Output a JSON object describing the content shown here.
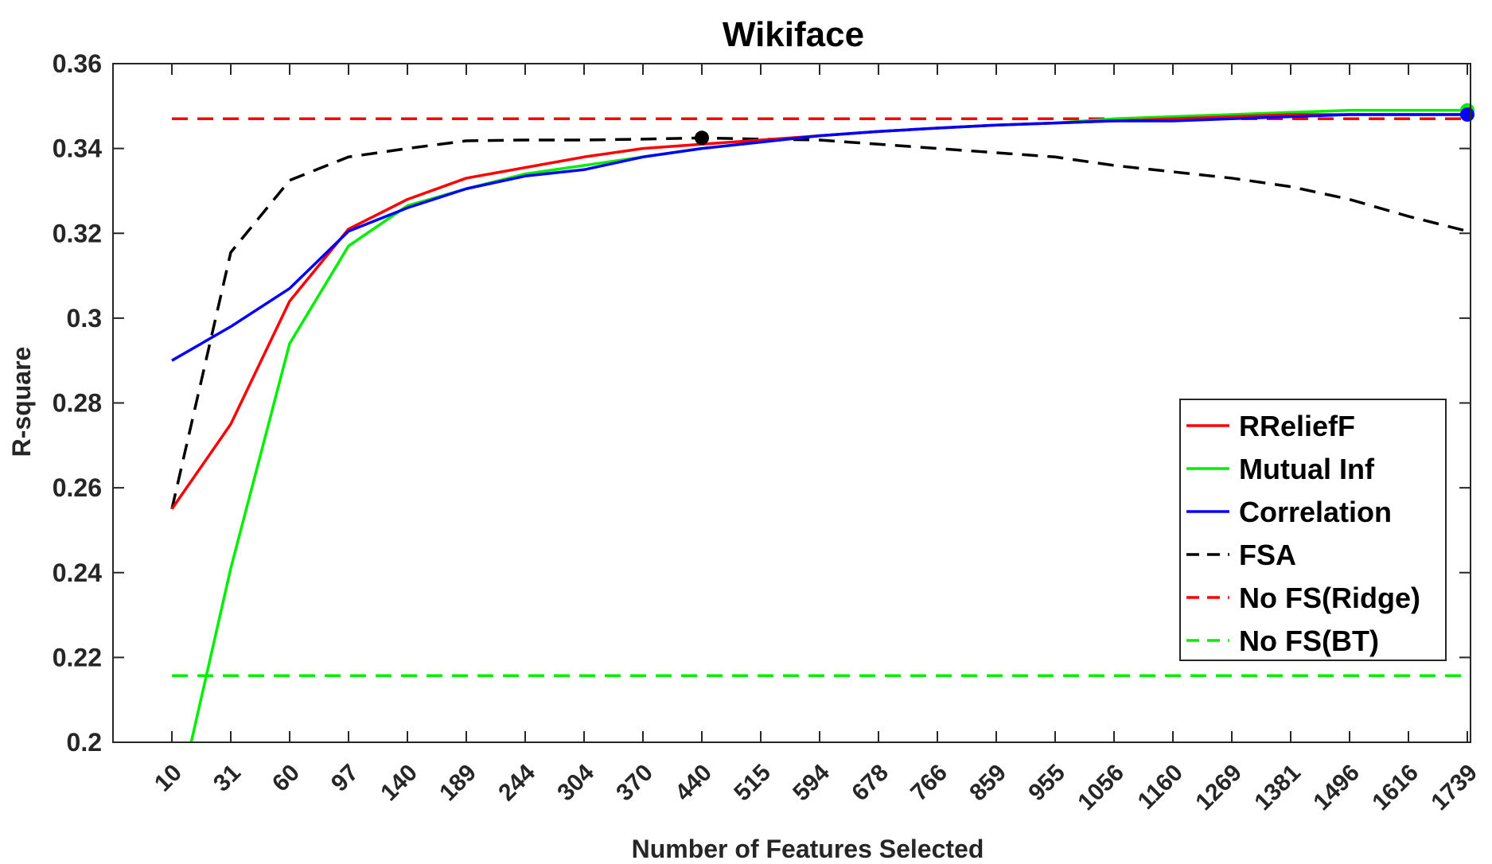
{
  "chart_data": {
    "type": "line",
    "title": "Wikiface",
    "xlabel": "Number of Features Selected",
    "ylabel": "R-square",
    "categories": [
      "10",
      "31",
      "60",
      "97",
      "140",
      "189",
      "244",
      "304",
      "370",
      "440",
      "515",
      "594",
      "678",
      "766",
      "859",
      "955",
      "1056",
      "1160",
      "1269",
      "1381",
      "1496",
      "1616",
      "1739"
    ],
    "ylim": [
      0.2,
      0.36
    ],
    "yticks": [
      "0.2",
      "0.22",
      "0.24",
      "0.26",
      "0.28",
      "0.3",
      "0.32",
      "0.34",
      "0.36"
    ],
    "grid": false,
    "legend_position": "bottom-right",
    "series": [
      {
        "name": "RReliefF",
        "color": "#ff0000",
        "style": "solid",
        "values": [
          0.255,
          0.275,
          0.304,
          0.321,
          0.328,
          0.333,
          0.3355,
          0.338,
          0.34,
          0.341,
          0.342,
          0.343,
          0.344,
          0.3448,
          0.3455,
          0.346,
          0.3465,
          0.347,
          0.3475,
          0.348,
          0.348,
          0.348,
          0.348
        ]
      },
      {
        "name": "Mutual Inf",
        "color": "#00ee00",
        "style": "solid",
        "values": [
          0.18,
          0.241,
          0.294,
          0.317,
          0.3265,
          0.3305,
          0.334,
          0.336,
          0.338,
          0.34,
          0.3415,
          0.343,
          0.344,
          0.3448,
          0.3455,
          0.346,
          0.347,
          0.3475,
          0.348,
          0.3485,
          0.349,
          0.349,
          0.349
        ],
        "marker_last": true
      },
      {
        "name": "Correlation",
        "color": "#0000ff",
        "style": "solid",
        "values": [
          0.29,
          0.298,
          0.307,
          0.3205,
          0.326,
          0.3305,
          0.3335,
          0.335,
          0.338,
          0.34,
          0.3415,
          0.343,
          0.344,
          0.3448,
          0.3455,
          0.346,
          0.3465,
          0.3465,
          0.347,
          0.3475,
          0.348,
          0.348,
          0.348
        ],
        "marker_last": true
      },
      {
        "name": "FSA",
        "color": "#000000",
        "style": "dashed",
        "values": [
          0.255,
          0.3155,
          0.3325,
          0.338,
          0.34,
          0.3418,
          0.342,
          0.342,
          0.3422,
          0.3425,
          0.3422,
          0.342,
          0.341,
          0.34,
          0.339,
          0.338,
          0.336,
          0.3345,
          0.333,
          0.331,
          0.328,
          0.324,
          0.3205
        ],
        "marker_at": "440"
      },
      {
        "name": "No FS(Ridge)",
        "color": "#ff0000",
        "style": "dashed",
        "constant": 0.347
      },
      {
        "name": "No FS(BT)",
        "color": "#00ee00",
        "style": "dashed",
        "constant": 0.2157
      }
    ]
  }
}
